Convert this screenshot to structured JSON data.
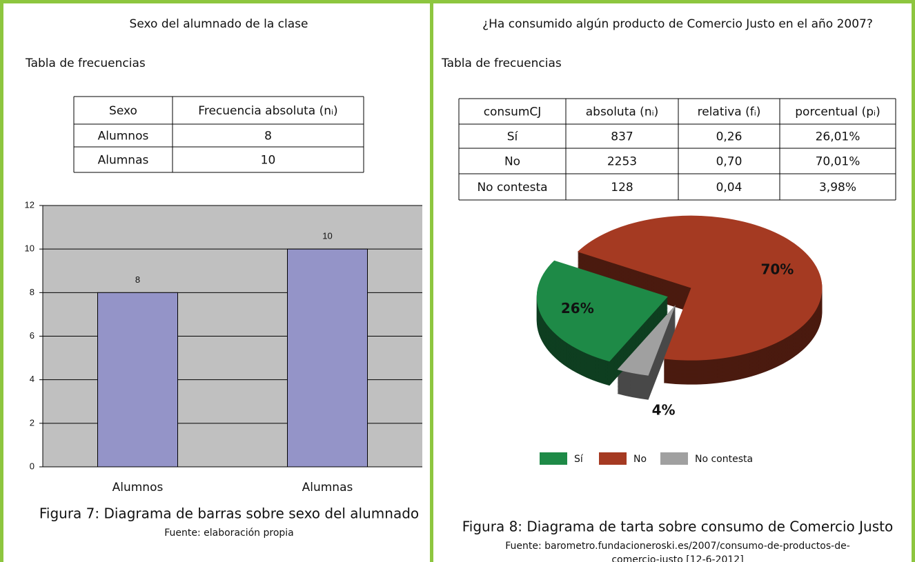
{
  "left": {
    "title": "Sexo del alumnado de la clase",
    "table_label": "Tabla de frecuencias",
    "table": {
      "header": [
        "Sexo",
        "Frecuencia absoluta (nᵢ)"
      ],
      "rows": [
        [
          "Alumnos",
          "8"
        ],
        [
          "Alumnas",
          "10"
        ]
      ]
    },
    "caption": "Figura 7: Diagrama de barras sobre sexo del alumnado",
    "source": [
      "Fuente: elaboración propia"
    ]
  },
  "right": {
    "title": "¿Ha consumido algún producto de Comercio Justo en el año 2007?",
    "table_label": "Tabla de frecuencias",
    "table": {
      "header": [
        "consumCJ",
        "absoluta (nᵢ)",
        "relativa (fᵢ)",
        "porcentual (pᵢ)"
      ],
      "rows": [
        [
          "Sí",
          "837",
          "0,26",
          "26,01%"
        ],
        [
          "No",
          "2253",
          "0,70",
          "70,01%"
        ],
        [
          "No contesta",
          "128",
          "0,04",
          "3,98%"
        ]
      ]
    },
    "caption": "Figura 8: Diagrama de tarta sobre consumo de Comercio Justo",
    "source": [
      "Fuente: barometro.fundacioneroski.es/2007/consumo-de-productos-de-",
      "comercio-justo [12-6-2012]"
    ]
  },
  "chart_data": [
    {
      "type": "bar",
      "categories": [
        "Alumnos",
        "Alumnas"
      ],
      "values": [
        8,
        10
      ],
      "color": "#9494c8",
      "background": "#c0c0c0",
      "ylim": [
        0,
        12
      ],
      "yticks": [
        0,
        2,
        4,
        6,
        8,
        10,
        12
      ],
      "grid": true
    },
    {
      "type": "pie",
      "categories": [
        "Sí",
        "No",
        "No contesta"
      ],
      "values": [
        26,
        70,
        4
      ],
      "value_labels": [
        "26%",
        "70%",
        "4%"
      ],
      "colors": [
        "#1e8a47",
        "#a53a22",
        "#a0a0a0"
      ]
    }
  ]
}
